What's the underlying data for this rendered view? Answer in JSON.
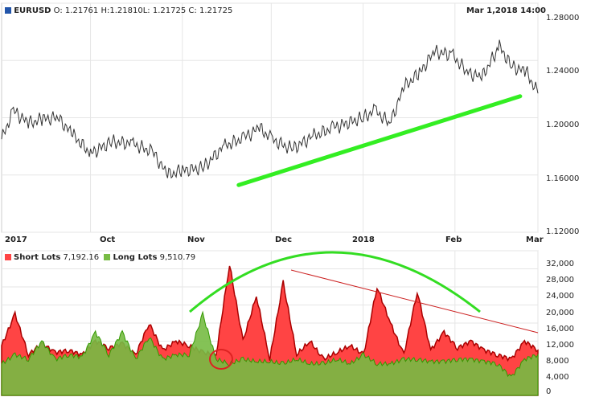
{
  "symbol": "EURUSD",
  "header": {
    "o_label": "O:",
    "o_value": "1.21761",
    "h_label": "H:",
    "h_value": "1.21810",
    "l_label": "L:",
    "l_value": "1.21725",
    "c_label": "C:",
    "c_value": "1.21725",
    "datetime": "Mar 1,2018 14:00"
  },
  "legend": {
    "short_label": "Short Lots",
    "short_value": "7,192.16",
    "short_color": "#ff4444",
    "long_label": "Long Lots",
    "long_value": "9,510.79",
    "long_color": "#77bb44"
  },
  "chart_data": [
    {
      "type": "line",
      "series": [
        {
          "x": [
            "2017-09-01",
            "2017-09-05",
            "2017-09-10",
            "2017-09-15",
            "2017-09-20",
            "2017-09-25",
            "2017-10-01",
            "2017-10-08",
            "2017-10-15",
            "2017-10-22",
            "2017-10-27",
            "2017-11-01",
            "2017-11-08",
            "2017-11-15",
            "2017-11-22",
            "2017-11-27",
            "2017-12-01",
            "2017-12-08",
            "2017-12-15",
            "2017-12-22",
            "2018-01-01",
            "2018-01-05",
            "2018-01-10",
            "2018-01-15",
            "2018-01-20",
            "2018-01-25",
            "2018-01-31",
            "2018-02-05",
            "2018-02-10",
            "2018-02-16",
            "2018-02-20",
            "2018-02-25",
            "2018-03-01"
          ],
          "values": [
            1.185,
            1.205,
            1.196,
            1.199,
            1.2,
            1.188,
            1.175,
            1.183,
            1.182,
            1.176,
            1.16,
            1.163,
            1.165,
            1.18,
            1.186,
            1.193,
            1.185,
            1.178,
            1.187,
            1.193,
            1.2,
            1.205,
            1.196,
            1.222,
            1.231,
            1.246,
            1.244,
            1.232,
            1.228,
            1.25,
            1.236,
            1.232,
            1.217
          ]
        }
      ],
      "xticks": [
        "2017",
        "Oct",
        "Nov",
        "Dec",
        "2018",
        "Feb",
        "Mar"
      ],
      "yticks": [
        "1.28000",
        "1.24000",
        "1.20000",
        "1.16000",
        "1.12000"
      ],
      "ylim": [
        1.12,
        1.28
      ],
      "grid": true,
      "trendline": {
        "color": "#33ee22",
        "from": [
          "2017-11-20",
          1.153
        ],
        "to": [
          "2018-02-23",
          1.215
        ]
      }
    },
    {
      "type": "area",
      "series": [
        {
          "name": "Short Lots",
          "values": [
            11000,
            18000,
            9000,
            11500,
            9500,
            10000,
            9000,
            12000,
            10500,
            11500,
            9000,
            16000,
            10000,
            12000,
            11000,
            9500,
            9000,
            29000,
            12000,
            22000,
            8000,
            25000,
            9000,
            12000,
            8000,
            9500,
            11000,
            9000,
            24000,
            16000,
            9000,
            23000,
            10000,
            14000,
            10500,
            12000,
            10000,
            9000,
            8000,
            12000,
            10000
          ]
        },
        {
          "name": "Long Lots",
          "values": [
            7000,
            9000,
            8000,
            12000,
            8000,
            9000,
            8500,
            14000,
            9000,
            14000,
            8000,
            13000,
            8000,
            9000,
            9000,
            18000,
            8000,
            7000,
            8000,
            7500,
            7500,
            7000,
            8000,
            7000,
            7000,
            8000,
            7000,
            9000,
            7000,
            7000,
            8000,
            8000,
            7500,
            7500,
            8000,
            8000,
            7500,
            7000,
            4000,
            8000,
            9000
          ]
        }
      ],
      "yticks": [
        "32,000",
        "28,000",
        "24,000",
        "20,000",
        "16,000",
        "12,000",
        "8,000",
        "4,000",
        "0"
      ],
      "ylim": [
        0,
        32000
      ],
      "grid": true,
      "arc_color": "#33dd22",
      "downtrend_color": "#cc2222",
      "marker_color": "#dd2222"
    }
  ]
}
